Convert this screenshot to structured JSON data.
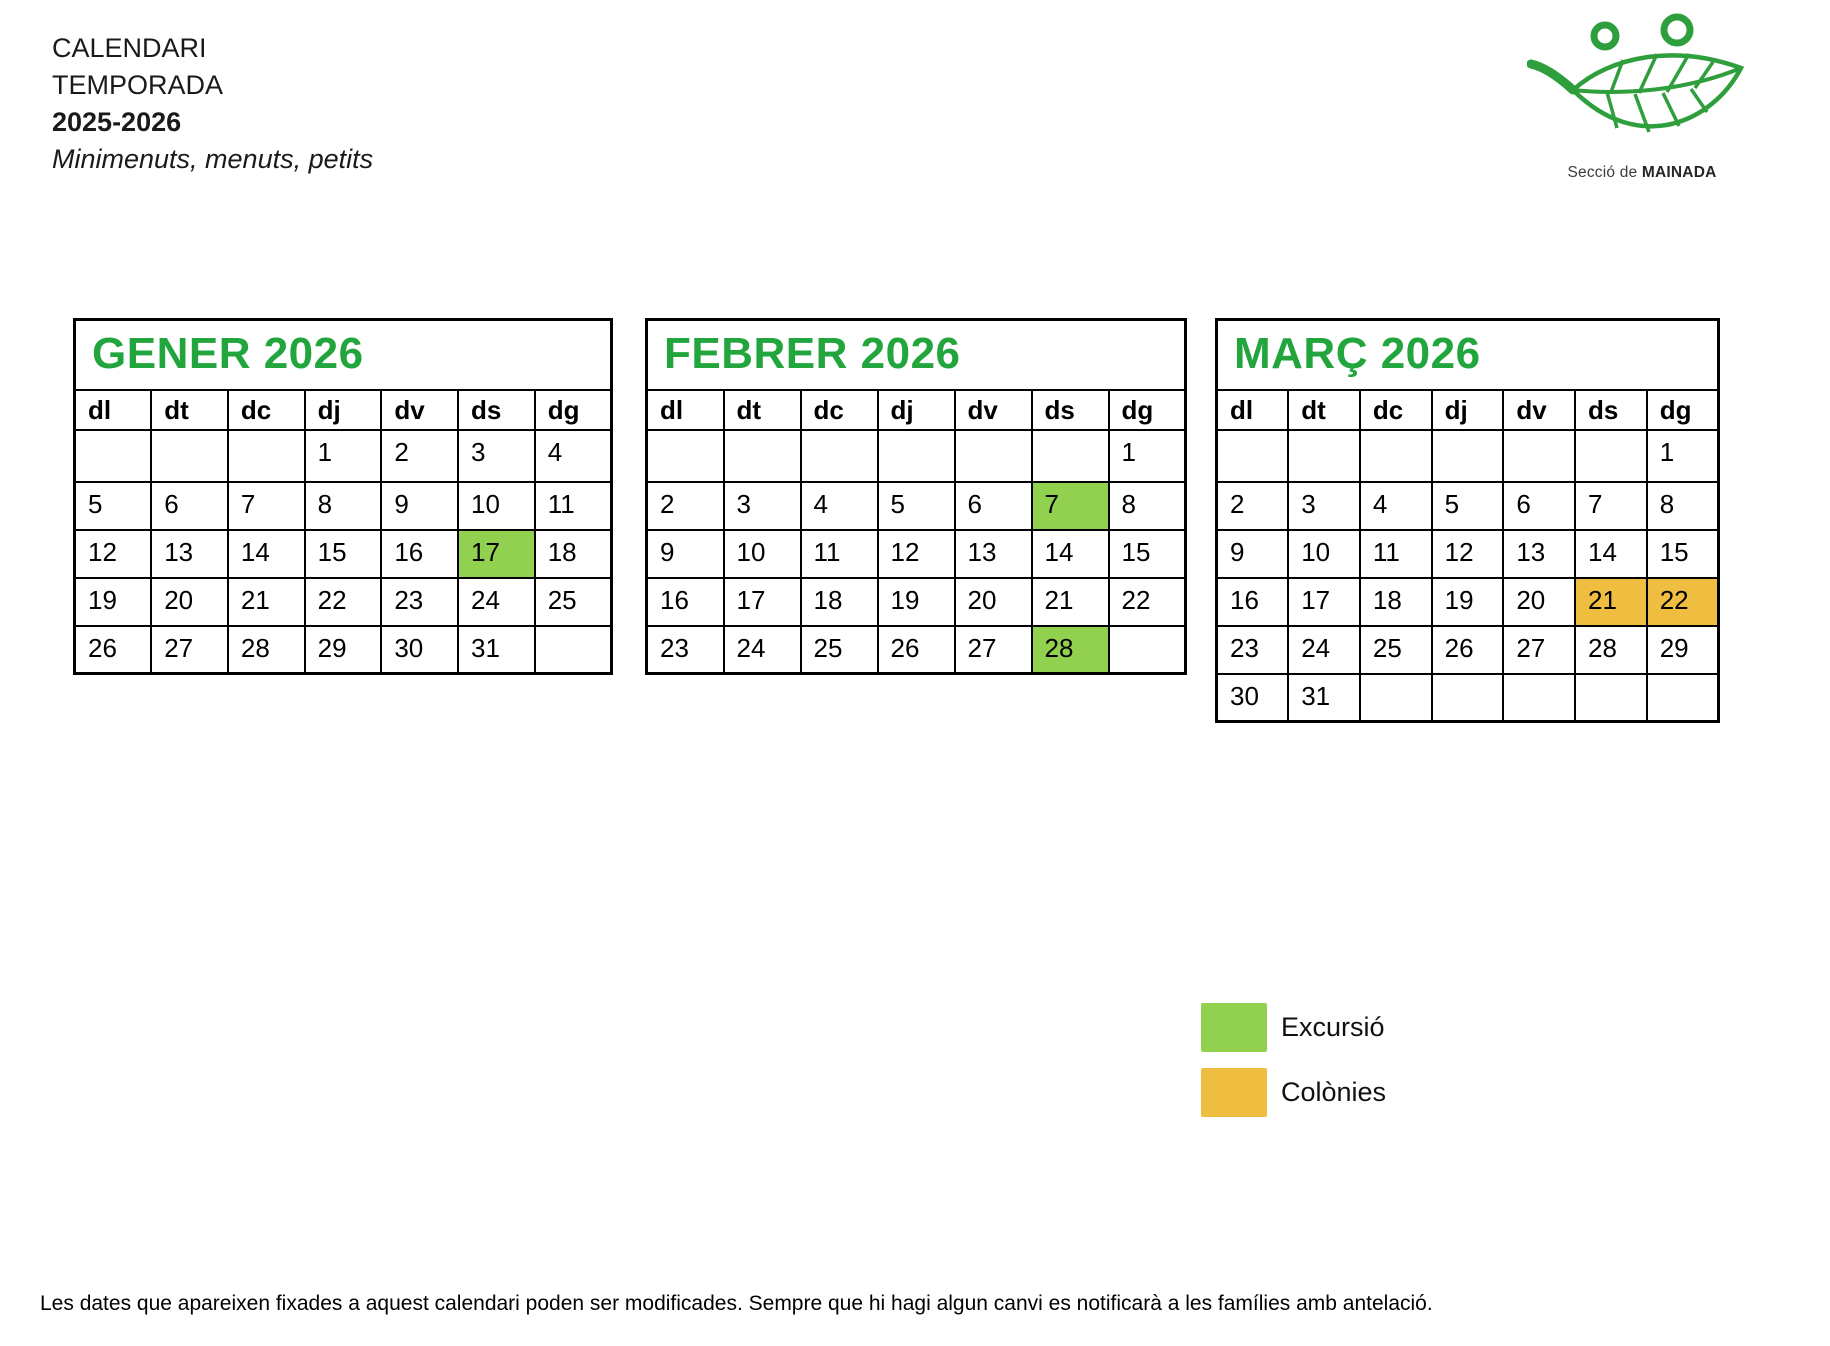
{
  "title_block": {
    "line1": "CALENDARI",
    "line2": "TEMPORADA",
    "line3": "2025-2026",
    "line4": "Minimenuts, menuts, petits"
  },
  "logo": {
    "caption_prefix": "Secció de",
    "caption_bold": "MAINADA"
  },
  "weekdays": [
    "dl",
    "dt",
    "dc",
    "dj",
    "dv",
    "ds",
    "dg"
  ],
  "months": [
    {
      "title": "GENER 2026",
      "rows": [
        [
          "",
          "",
          "",
          "1",
          "2",
          "3",
          "4"
        ],
        [
          "5",
          "6",
          "7",
          "8",
          "9",
          "10",
          "11"
        ],
        [
          "12",
          "13",
          "14",
          "15",
          "16",
          "17",
          "18"
        ],
        [
          "19",
          "20",
          "21",
          "22",
          "23",
          "24",
          "25"
        ],
        [
          "26",
          "27",
          "28",
          "29",
          "30",
          "31",
          ""
        ]
      ],
      "marks": {
        "17": "excursio"
      }
    },
    {
      "title": "FEBRER 2026",
      "rows": [
        [
          "",
          "",
          "",
          "",
          "",
          "",
          "1"
        ],
        [
          "2",
          "3",
          "4",
          "5",
          "6",
          "7",
          "8"
        ],
        [
          "9",
          "10",
          "11",
          "12",
          "13",
          "14",
          "15"
        ],
        [
          "16",
          "17",
          "18",
          "19",
          "20",
          "21",
          "22"
        ],
        [
          "23",
          "24",
          "25",
          "26",
          "27",
          "28",
          ""
        ]
      ],
      "marks": {
        "7": "excursio",
        "28": "excursio"
      }
    },
    {
      "title": "MARÇ 2026",
      "rows": [
        [
          "",
          "",
          "",
          "",
          "",
          "",
          "1"
        ],
        [
          "2",
          "3",
          "4",
          "5",
          "6",
          "7",
          "8"
        ],
        [
          "9",
          "10",
          "11",
          "12",
          "13",
          "14",
          "15"
        ],
        [
          "16",
          "17",
          "18",
          "19",
          "20",
          "21",
          "22"
        ],
        [
          "23",
          "24",
          "25",
          "26",
          "27",
          "28",
          "29"
        ],
        [
          "30",
          "31",
          "",
          "",
          "",
          "",
          ""
        ]
      ],
      "marks": {
        "21": "colonies",
        "22": "colonies"
      }
    }
  ],
  "legend": [
    {
      "label": "Excursió",
      "type": "excursio"
    },
    {
      "label": "Colònies",
      "type": "colonies"
    }
  ],
  "colors": {
    "month_title": "#21a53c",
    "excursio": "#92d050",
    "colonies": "#efbe41",
    "logo_green": "#2f9e3c"
  },
  "footnote": "Les dates que apareixen fixades a aquest calendari poden ser modificades. Sempre que hi hagi algun canvi es notificarà a les famílies amb antelació."
}
